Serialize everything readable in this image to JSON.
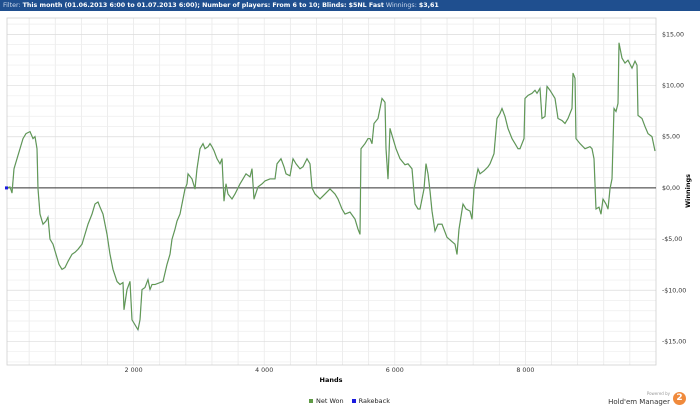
{
  "filter": {
    "label": "Filter:",
    "text": "This month (01.06.2013 6:00 to 01.07.2013 6:00); Number of players: From 6 to 10; Blinds: $5NL Fast",
    "winnings_label": "Winnings:",
    "winnings_value": "$3,61"
  },
  "colors": {
    "header": "#1f4f8f",
    "net_won": "#5f9a45",
    "rakeback": "#1a1adf",
    "logo": "#f08a3c"
  },
  "chart_data": {
    "type": "line",
    "xlabel": "Hands",
    "ylabel": "Winnings",
    "xlim": [
      0,
      10000
    ],
    "ylim": [
      -17.3,
      16.6
    ],
    "grid": true,
    "legend_placement": "bottom",
    "x_ticks": [
      {
        "v": 2000,
        "label": "2 000"
      },
      {
        "v": 4000,
        "label": "4 000"
      },
      {
        "v": 6000,
        "label": "6 000"
      },
      {
        "v": 8000,
        "label": "8 000"
      }
    ],
    "y_ticks": [
      {
        "v": 15,
        "label": "$15,00"
      },
      {
        "v": 10,
        "label": "$10,00"
      },
      {
        "v": 5,
        "label": "$5,00"
      },
      {
        "v": 0,
        "label": "$0,00"
      },
      {
        "v": -5,
        "label": "-$5,00"
      },
      {
        "v": -10,
        "label": "-$10,00"
      },
      {
        "v": -15,
        "label": "-$15,00"
      }
    ],
    "series": [
      {
        "name": "Net Won",
        "points": [
          [
            61,
            0
          ],
          [
            107,
            0.1
          ],
          [
            138,
            -0.49
          ],
          [
            168,
            1.87
          ],
          [
            214,
            2.85
          ],
          [
            260,
            3.83
          ],
          [
            306,
            4.82
          ],
          [
            352,
            5.31
          ],
          [
            413,
            5.5
          ],
          [
            459,
            4.82
          ],
          [
            490,
            5.01
          ],
          [
            521,
            3.83
          ],
          [
            536,
            -0.1
          ],
          [
            567,
            -2.56
          ],
          [
            613,
            -3.54
          ],
          [
            658,
            -3.24
          ],
          [
            689,
            -2.85
          ],
          [
            720,
            -5.01
          ],
          [
            766,
            -5.5
          ],
          [
            812,
            -6.49
          ],
          [
            858,
            -7.47
          ],
          [
            904,
            -7.96
          ],
          [
            949,
            -7.77
          ],
          [
            995,
            -7.18
          ],
          [
            1057,
            -6.49
          ],
          [
            1103,
            -6.29
          ],
          [
            1149,
            -6
          ],
          [
            1210,
            -5.5
          ],
          [
            1256,
            -4.52
          ],
          [
            1302,
            -3.54
          ],
          [
            1363,
            -2.56
          ],
          [
            1409,
            -1.57
          ],
          [
            1455,
            -1.38
          ],
          [
            1485,
            -1.87
          ],
          [
            1531,
            -2.56
          ],
          [
            1593,
            -4.52
          ],
          [
            1639,
            -6.49
          ],
          [
            1685,
            -7.96
          ],
          [
            1746,
            -9.14
          ],
          [
            1792,
            -9.44
          ],
          [
            1838,
            -9.24
          ],
          [
            1853,
            -11.89
          ],
          [
            1899,
            -9.93
          ],
          [
            1945,
            -9.14
          ],
          [
            1975,
            -12.88
          ],
          [
            2021,
            -13.37
          ],
          [
            2067,
            -13.86
          ],
          [
            2098,
            -12.88
          ],
          [
            2129,
            -9.93
          ],
          [
            2175,
            -9.73
          ],
          [
            2221,
            -8.95
          ],
          [
            2251,
            -9.93
          ],
          [
            2282,
            -9.44
          ],
          [
            2328,
            -9.44
          ],
          [
            2450,
            -9.14
          ],
          [
            2512,
            -7.47
          ],
          [
            2557,
            -6.49
          ],
          [
            2588,
            -5.01
          ],
          [
            2634,
            -4.03
          ],
          [
            2665,
            -3.24
          ],
          [
            2711,
            -2.56
          ],
          [
            2741,
            -1.57
          ],
          [
            2787,
            -0.1
          ],
          [
            2818,
            0.39
          ],
          [
            2833,
            1.38
          ],
          [
            2894,
            0.88
          ],
          [
            2940,
            -0.1
          ],
          [
            2971,
            1.87
          ],
          [
            3017,
            3.83
          ],
          [
            3063,
            4.33
          ],
          [
            3093,
            3.83
          ],
          [
            3139,
            4.03
          ],
          [
            3170,
            4.33
          ],
          [
            3201,
            4.03
          ],
          [
            3231,
            3.64
          ],
          [
            3277,
            2.85
          ],
          [
            3323,
            2.36
          ],
          [
            3354,
            2.85
          ],
          [
            3384,
            -1.28
          ],
          [
            3415,
            0.39
          ],
          [
            3446,
            -0.59
          ],
          [
            3507,
            -1.08
          ],
          [
            3553,
            -0.59
          ],
          [
            3629,
            0.39
          ],
          [
            3675,
            0.88
          ],
          [
            3721,
            1.38
          ],
          [
            3783,
            1.08
          ],
          [
            3813,
            1.87
          ],
          [
            3844,
            -1.08
          ],
          [
            3905,
            0.1
          ],
          [
            3966,
            0.39
          ],
          [
            4012,
            0.69
          ],
          [
            4089,
            0.88
          ],
          [
            4165,
            0.88
          ],
          [
            4196,
            2.36
          ],
          [
            4257,
            2.85
          ],
          [
            4303,
            2.06
          ],
          [
            4334,
            1.38
          ],
          [
            4395,
            1.18
          ],
          [
            4441,
            2.85
          ],
          [
            4487,
            2.36
          ],
          [
            4548,
            1.87
          ],
          [
            4594,
            2.06
          ],
          [
            4655,
            2.85
          ],
          [
            4701,
            2.36
          ],
          [
            4732,
            0
          ],
          [
            4778,
            -0.59
          ],
          [
            4855,
            -1.08
          ],
          [
            4931,
            -0.59
          ],
          [
            5008,
            -0.1
          ],
          [
            5084,
            -0.59
          ],
          [
            5130,
            -1.08
          ],
          [
            5192,
            -2.06
          ],
          [
            5237,
            -2.56
          ],
          [
            5314,
            -2.36
          ],
          [
            5390,
            -3.05
          ],
          [
            5437,
            -4.03
          ],
          [
            5467,
            -4.52
          ],
          [
            5482,
            3.83
          ],
          [
            5544,
            4.33
          ],
          [
            5590,
            4.82
          ],
          [
            5620,
            4.82
          ],
          [
            5651,
            4.33
          ],
          [
            5682,
            6.29
          ],
          [
            5743,
            6.78
          ],
          [
            5804,
            8.75
          ],
          [
            5850,
            8.36
          ],
          [
            5865,
            3.83
          ],
          [
            5896,
            0.88
          ],
          [
            5927,
            5.8
          ],
          [
            5973,
            4.82
          ],
          [
            6018,
            3.83
          ],
          [
            6080,
            2.85
          ],
          [
            6156,
            2.26
          ],
          [
            6202,
            2.36
          ],
          [
            6263,
            1.87
          ],
          [
            6309,
            -1.57
          ],
          [
            6355,
            -2.06
          ],
          [
            6386,
            -2.06
          ],
          [
            6416,
            -1.08
          ],
          [
            6447,
            -0.1
          ],
          [
            6478,
            2.36
          ],
          [
            6508,
            1.38
          ],
          [
            6539,
            -0.29
          ],
          [
            6570,
            -2.26
          ],
          [
            6616,
            -4.23
          ],
          [
            6662,
            -3.54
          ],
          [
            6723,
            -3.54
          ],
          [
            6799,
            -4.82
          ],
          [
            6922,
            -5.5
          ],
          [
            6953,
            -6.49
          ],
          [
            6983,
            -4.03
          ],
          [
            7044,
            -1.57
          ],
          [
            7090,
            -2.06
          ],
          [
            7152,
            -2.26
          ],
          [
            7182,
            -3.05
          ],
          [
            7213,
            -0.1
          ],
          [
            7274,
            1.87
          ],
          [
            7305,
            1.38
          ],
          [
            7366,
            1.67
          ],
          [
            7427,
            2.06
          ],
          [
            7458,
            2.36
          ],
          [
            7519,
            3.34
          ],
          [
            7565,
            6.78
          ],
          [
            7611,
            7.27
          ],
          [
            7642,
            7.77
          ],
          [
            7688,
            6.98
          ],
          [
            7734,
            5.8
          ],
          [
            7795,
            4.82
          ],
          [
            7841,
            4.33
          ],
          [
            7887,
            3.83
          ],
          [
            7917,
            3.83
          ],
          [
            7979,
            4.82
          ],
          [
            7994,
            8.75
          ],
          [
            8040,
            9.04
          ],
          [
            8101,
            9.24
          ],
          [
            8147,
            9.54
          ],
          [
            8178,
            9.24
          ],
          [
            8224,
            9.73
          ],
          [
            8254,
            6.78
          ],
          [
            8300,
            6.98
          ],
          [
            8331,
            9.93
          ],
          [
            8377,
            9.54
          ],
          [
            8453,
            8.75
          ],
          [
            8499,
            6.78
          ],
          [
            8560,
            6.59
          ],
          [
            8606,
            6.29
          ],
          [
            8652,
            6.78
          ],
          [
            8713,
            7.77
          ],
          [
            8729,
            11.21
          ],
          [
            8759,
            10.71
          ],
          [
            8775,
            4.82
          ],
          [
            8836,
            4.33
          ],
          [
            8913,
            3.83
          ],
          [
            8989,
            4.03
          ],
          [
            9020,
            3.83
          ],
          [
            9050,
            2.85
          ],
          [
            9081,
            -2.06
          ],
          [
            9127,
            -1.87
          ],
          [
            9158,
            -2.56
          ],
          [
            9188,
            -1.08
          ],
          [
            9234,
            -1.57
          ],
          [
            9265,
            -2.06
          ],
          [
            9296,
            -0.1
          ],
          [
            9326,
            0.88
          ],
          [
            9357,
            7.77
          ],
          [
            9387,
            7.47
          ],
          [
            9418,
            8.26
          ],
          [
            9433,
            14.16
          ],
          [
            9479,
            12.68
          ],
          [
            9525,
            12.19
          ],
          [
            9571,
            12.48
          ],
          [
            9633,
            11.7
          ],
          [
            9679,
            12.39
          ],
          [
            9709,
            11.99
          ],
          [
            9725,
            7.08
          ],
          [
            9786,
            6.78
          ],
          [
            9832,
            6
          ],
          [
            9878,
            5.31
          ],
          [
            9939,
            5.01
          ],
          [
            9985,
            3.61
          ]
        ]
      },
      {
        "name": "Rakeback",
        "points": [
          [
            61,
            0
          ]
        ]
      }
    ]
  },
  "legend": {
    "net_won": "Net Won",
    "rakeback": "Rakeback"
  },
  "branding": {
    "powered_by": "Powered by",
    "name": "Hold'em Manager",
    "badge": "2"
  }
}
